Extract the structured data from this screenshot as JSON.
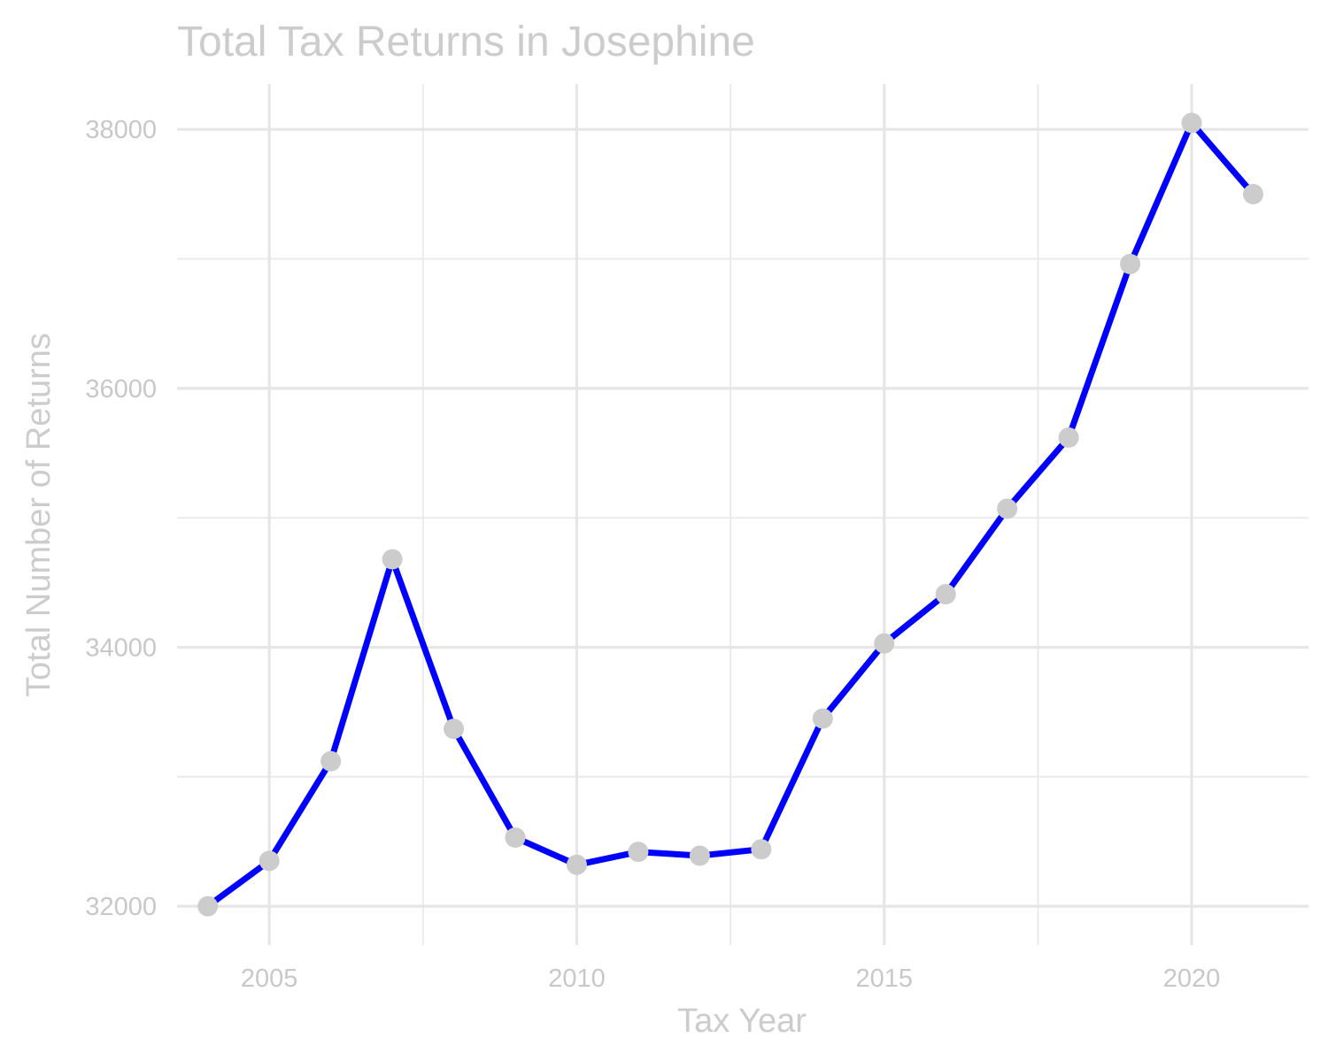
{
  "chart_data": {
    "type": "line",
    "title": "Total Tax Returns in Josephine",
    "xlabel": "Tax Year",
    "ylabel": "Total Number of Returns",
    "x": [
      2004,
      2005,
      2006,
      2007,
      2008,
      2009,
      2010,
      2011,
      2012,
      2013,
      2014,
      2015,
      2016,
      2017,
      2018,
      2019,
      2020,
      2021
    ],
    "series": [
      {
        "values": [
          32000,
          32350,
          33120,
          34680,
          33370,
          32530,
          32320,
          32420,
          32390,
          32440,
          33450,
          34030,
          34410,
          35070,
          35620,
          36960,
          38050,
          37500
        ]
      }
    ],
    "xticks": [
      "2005",
      "2010",
      "2015",
      "2020"
    ],
    "yticks": [
      "32000",
      "34000",
      "36000",
      "38000"
    ],
    "xlim": [
      2003.5,
      2021.9
    ],
    "ylim": [
      31700,
      38350
    ],
    "grid": true,
    "legend": "none",
    "colors": {
      "line": "#0000ff",
      "points": "#cccccc",
      "grid": "#e6e6e6",
      "text": "#cccccc"
    }
  }
}
